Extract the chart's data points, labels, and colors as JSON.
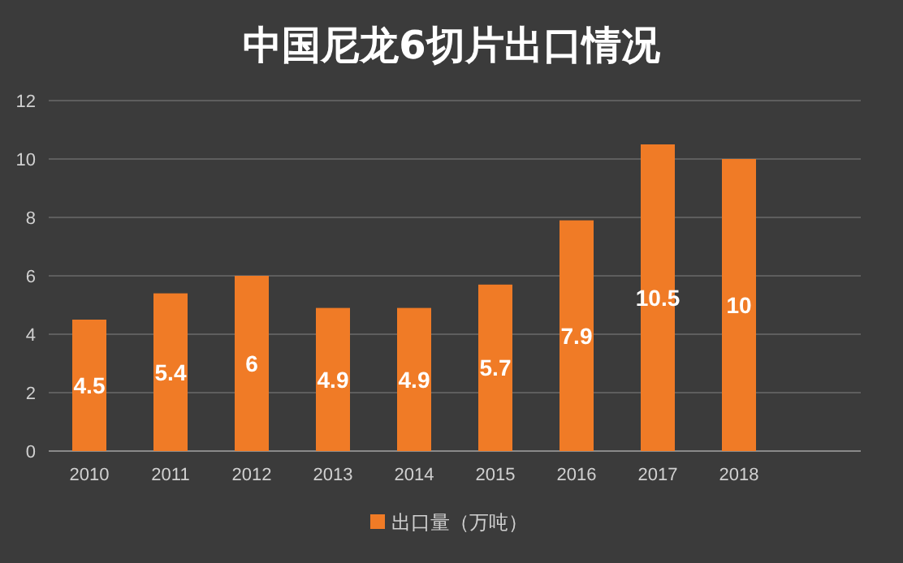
{
  "chart_data": {
    "type": "bar",
    "title": "中国尼龙6切片出口情况",
    "categories": [
      "2010",
      "2011",
      "2012",
      "2013",
      "2014",
      "2015",
      "2016",
      "2017",
      "2018",
      null
    ],
    "series": [
      {
        "name": "出口量（万吨）",
        "color": "#f07b26",
        "values": [
          4.5,
          5.4,
          6,
          4.9,
          4.9,
          5.7,
          7.9,
          10.5,
          10,
          null
        ]
      }
    ],
    "ylim": [
      0,
      12
    ],
    "yticks": [
      0,
      2,
      4,
      6,
      8,
      10,
      12
    ],
    "grid": "y",
    "legend": "bottom",
    "data_labels": true
  }
}
